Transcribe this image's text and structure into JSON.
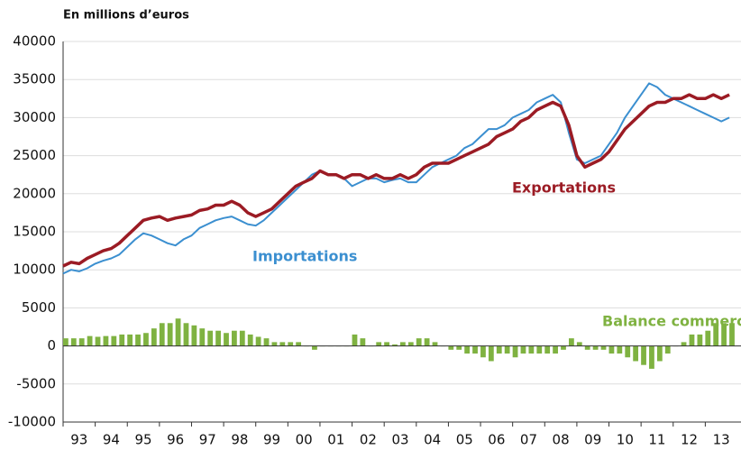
{
  "chart_data": {
    "type": "line",
    "title": "En millions d’euros",
    "x": [
      1993,
      1993.25,
      1993.5,
      1993.75,
      1994,
      1994.25,
      1994.5,
      1994.75,
      1995,
      1995.25,
      1995.5,
      1995.75,
      1996,
      1996.25,
      1996.5,
      1996.75,
      1997,
      1997.25,
      1997.5,
      1997.75,
      1998,
      1998.25,
      1998.5,
      1998.75,
      1999,
      1999.25,
      1999.5,
      1999.75,
      2000,
      2000.25,
      2000.5,
      2000.75,
      2001,
      2001.25,
      2001.5,
      2001.75,
      2002,
      2002.25,
      2002.5,
      2002.75,
      2003,
      2003.25,
      2003.5,
      2003.75,
      2004,
      2004.25,
      2004.5,
      2004.75,
      2005,
      2005.25,
      2005.5,
      2005.75,
      2006,
      2006.25,
      2006.5,
      2006.75,
      2007,
      2007.25,
      2007.5,
      2007.75,
      2008,
      2008.25,
      2008.5,
      2008.75,
      2009,
      2009.25,
      2009.5,
      2009.75,
      2010,
      2010.25,
      2010.5,
      2010.75,
      2011,
      2011.25,
      2011.5,
      2011.75,
      2012,
      2012.25,
      2012.5,
      2012.75,
      2013,
      2013.25,
      2013.5,
      2013.75
    ],
    "series": [
      {
        "name": "Importations",
        "type": "line",
        "color": "#3b8fd0",
        "values": [
          9500,
          10000,
          9800,
          10200,
          10800,
          11200,
          11500,
          12000,
          13000,
          14000,
          14800,
          14500,
          14000,
          13500,
          13200,
          14000,
          14500,
          15500,
          16000,
          16500,
          16800,
          17000,
          16500,
          16000,
          15800,
          16500,
          17500,
          18500,
          19500,
          20500,
          21500,
          22500,
          23000,
          22500,
          22500,
          22000,
          21000,
          21500,
          22000,
          22000,
          21500,
          21800,
          22000,
          21500,
          21500,
          22500,
          23500,
          24000,
          24500,
          25000,
          26000,
          26500,
          27500,
          28500,
          28500,
          29000,
          30000,
          30500,
          31000,
          32000,
          32500,
          33000,
          32000,
          28000,
          24500,
          24000,
          24500,
          25000,
          26500,
          28000,
          30000,
          31500,
          33000,
          34500,
          34000,
          33000,
          32500,
          32000,
          31500,
          31000,
          30500,
          30000,
          29500,
          30000
        ]
      },
      {
        "name": "Exportations",
        "type": "line",
        "color": "#9b1b24",
        "values": [
          10500,
          11000,
          10800,
          11500,
          12000,
          12500,
          12800,
          13500,
          14500,
          15500,
          16500,
          16800,
          17000,
          16500,
          16800,
          17000,
          17200,
          17800,
          18000,
          18500,
          18500,
          19000,
          18500,
          17500,
          17000,
          17500,
          18000,
          19000,
          20000,
          21000,
          21500,
          22000,
          23000,
          22500,
          22500,
          22000,
          22500,
          22500,
          22000,
          22500,
          22000,
          22000,
          22500,
          22000,
          22500,
          23500,
          24000,
          24000,
          24000,
          24500,
          25000,
          25500,
          26000,
          26500,
          27500,
          28000,
          28500,
          29500,
          30000,
          31000,
          31500,
          32000,
          31500,
          29000,
          25000,
          23500,
          24000,
          24500,
          25500,
          27000,
          28500,
          29500,
          30500,
          31500,
          32000,
          32000,
          32500,
          32500,
          33000,
          32500,
          32500,
          33000,
          32500,
          33000
        ]
      },
      {
        "name": "Balance commerciale",
        "type": "bar",
        "color": "#7fb241",
        "values": [
          1000,
          1000,
          1000,
          1300,
          1200,
          1300,
          1300,
          1500,
          1500,
          1500,
          1700,
          2300,
          3000,
          3000,
          3600,
          3000,
          2700,
          2300,
          2000,
          2000,
          1700,
          2000,
          2000,
          1500,
          1200,
          1000,
          500,
          500,
          500,
          500,
          0,
          -500,
          0,
          0,
          0,
          0,
          1500,
          1000,
          0,
          500,
          500,
          200,
          500,
          500,
          1000,
          1000,
          500,
          0,
          -500,
          -500,
          -1000,
          -1000,
          -1500,
          -2000,
          -1000,
          -1000,
          -1500,
          -1000,
          -1000,
          -1000,
          -1000,
          -1000,
          -500,
          1000,
          500,
          -500,
          -500,
          -500,
          -1000,
          -1000,
          -1500,
          -2000,
          -2500,
          -3000,
          -2000,
          -1000,
          0,
          500,
          1500,
          1500,
          2000,
          3000,
          3000,
          3000
        ]
      }
    ],
    "xlim": [
      1993,
      2014
    ],
    "xticks": [
      {
        "value": 1993,
        "label": "93"
      },
      {
        "value": 1994,
        "label": "94"
      },
      {
        "value": 1995,
        "label": "95"
      },
      {
        "value": 1996,
        "label": "96"
      },
      {
        "value": 1997,
        "label": "97"
      },
      {
        "value": 1998,
        "label": "98"
      },
      {
        "value": 1999,
        "label": "99"
      },
      {
        "value": 2000,
        "label": "00"
      },
      {
        "value": 2001,
        "label": "01"
      },
      {
        "value": 2002,
        "label": "02"
      },
      {
        "value": 2003,
        "label": "03"
      },
      {
        "value": 2004,
        "label": "04"
      },
      {
        "value": 2005,
        "label": "05"
      },
      {
        "value": 2006,
        "label": "06"
      },
      {
        "value": 2007,
        "label": "07"
      },
      {
        "value": 2008,
        "label": "08"
      },
      {
        "value": 2009,
        "label": "09"
      },
      {
        "value": 2010,
        "label": "10"
      },
      {
        "value": 2011,
        "label": "11"
      },
      {
        "value": 2012,
        "label": "12"
      },
      {
        "value": 2013,
        "label": "13"
      }
    ],
    "ylim": [
      -10000,
      40000
    ],
    "yticks": [
      -10000,
      -5000,
      0,
      5000,
      10000,
      15000,
      20000,
      25000,
      30000,
      35000,
      40000
    ],
    "grid": true
  }
}
